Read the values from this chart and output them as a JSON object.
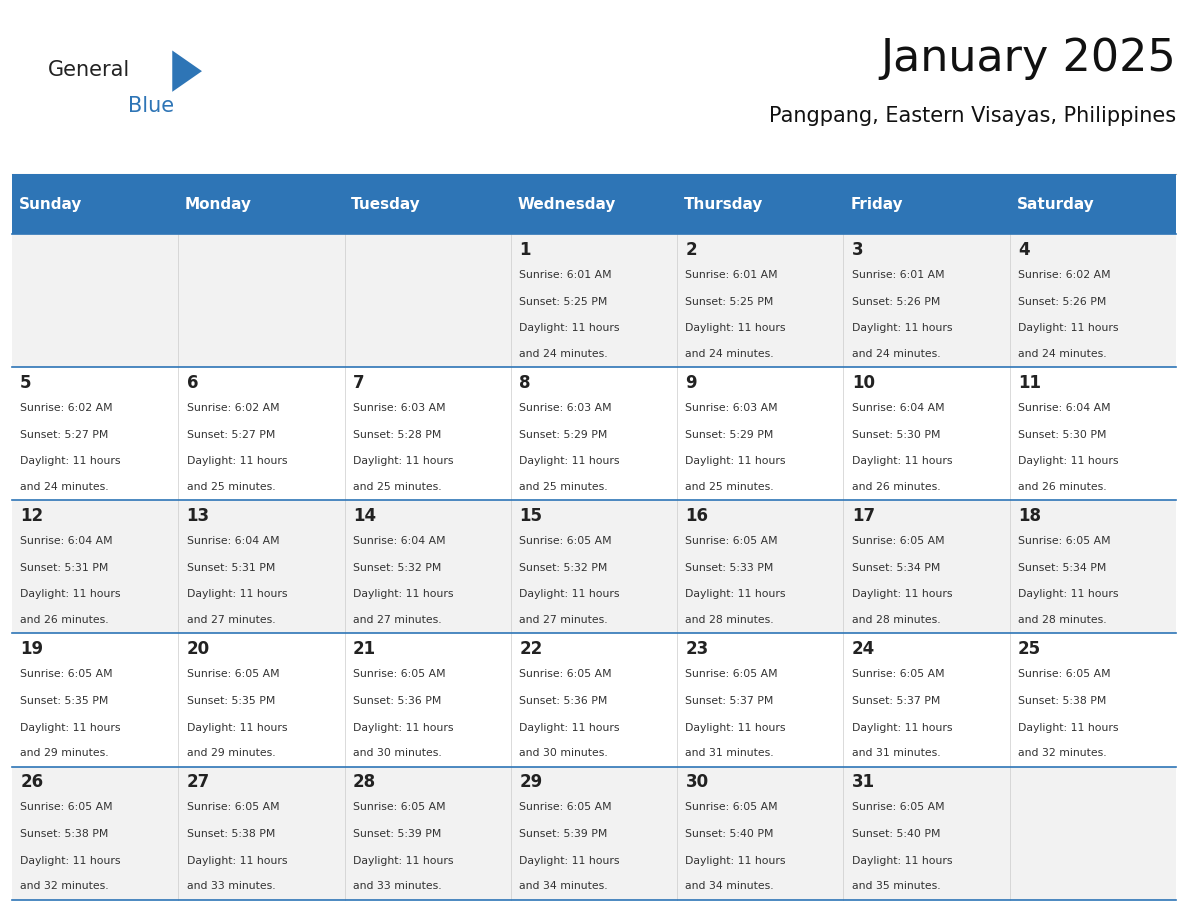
{
  "title": "January 2025",
  "subtitle": "Pangpang, Eastern Visayas, Philippines",
  "header_bg": "#2E75B6",
  "header_text": "#FFFFFF",
  "cell_bg_odd": "#F2F2F2",
  "cell_bg_even": "#FFFFFF",
  "row_line_color": "#2E75B6",
  "text_color": "#333333",
  "days_of_week": [
    "Sunday",
    "Monday",
    "Tuesday",
    "Wednesday",
    "Thursday",
    "Friday",
    "Saturday"
  ],
  "logo_general_color": "#222222",
  "logo_blue_color": "#2E75B6",
  "calendar_data": [
    [
      {
        "day": "",
        "sunrise": "",
        "sunset": "",
        "daylight": ""
      },
      {
        "day": "",
        "sunrise": "",
        "sunset": "",
        "daylight": ""
      },
      {
        "day": "",
        "sunrise": "",
        "sunset": "",
        "daylight": ""
      },
      {
        "day": "1",
        "sunrise": "6:01 AM",
        "sunset": "5:25 PM",
        "daylight": "11 hours and 24 minutes."
      },
      {
        "day": "2",
        "sunrise": "6:01 AM",
        "sunset": "5:25 PM",
        "daylight": "11 hours and 24 minutes."
      },
      {
        "day": "3",
        "sunrise": "6:01 AM",
        "sunset": "5:26 PM",
        "daylight": "11 hours and 24 minutes."
      },
      {
        "day": "4",
        "sunrise": "6:02 AM",
        "sunset": "5:26 PM",
        "daylight": "11 hours and 24 minutes."
      }
    ],
    [
      {
        "day": "5",
        "sunrise": "6:02 AM",
        "sunset": "5:27 PM",
        "daylight": "11 hours and 24 minutes."
      },
      {
        "day": "6",
        "sunrise": "6:02 AM",
        "sunset": "5:27 PM",
        "daylight": "11 hours and 25 minutes."
      },
      {
        "day": "7",
        "sunrise": "6:03 AM",
        "sunset": "5:28 PM",
        "daylight": "11 hours and 25 minutes."
      },
      {
        "day": "8",
        "sunrise": "6:03 AM",
        "sunset": "5:29 PM",
        "daylight": "11 hours and 25 minutes."
      },
      {
        "day": "9",
        "sunrise": "6:03 AM",
        "sunset": "5:29 PM",
        "daylight": "11 hours and 25 minutes."
      },
      {
        "day": "10",
        "sunrise": "6:04 AM",
        "sunset": "5:30 PM",
        "daylight": "11 hours and 26 minutes."
      },
      {
        "day": "11",
        "sunrise": "6:04 AM",
        "sunset": "5:30 PM",
        "daylight": "11 hours and 26 minutes."
      }
    ],
    [
      {
        "day": "12",
        "sunrise": "6:04 AM",
        "sunset": "5:31 PM",
        "daylight": "11 hours and 26 minutes."
      },
      {
        "day": "13",
        "sunrise": "6:04 AM",
        "sunset": "5:31 PM",
        "daylight": "11 hours and 27 minutes."
      },
      {
        "day": "14",
        "sunrise": "6:04 AM",
        "sunset": "5:32 PM",
        "daylight": "11 hours and 27 minutes."
      },
      {
        "day": "15",
        "sunrise": "6:05 AM",
        "sunset": "5:32 PM",
        "daylight": "11 hours and 27 minutes."
      },
      {
        "day": "16",
        "sunrise": "6:05 AM",
        "sunset": "5:33 PM",
        "daylight": "11 hours and 28 minutes."
      },
      {
        "day": "17",
        "sunrise": "6:05 AM",
        "sunset": "5:34 PM",
        "daylight": "11 hours and 28 minutes."
      },
      {
        "day": "18",
        "sunrise": "6:05 AM",
        "sunset": "5:34 PM",
        "daylight": "11 hours and 28 minutes."
      }
    ],
    [
      {
        "day": "19",
        "sunrise": "6:05 AM",
        "sunset": "5:35 PM",
        "daylight": "11 hours and 29 minutes."
      },
      {
        "day": "20",
        "sunrise": "6:05 AM",
        "sunset": "5:35 PM",
        "daylight": "11 hours and 29 minutes."
      },
      {
        "day": "21",
        "sunrise": "6:05 AM",
        "sunset": "5:36 PM",
        "daylight": "11 hours and 30 minutes."
      },
      {
        "day": "22",
        "sunrise": "6:05 AM",
        "sunset": "5:36 PM",
        "daylight": "11 hours and 30 minutes."
      },
      {
        "day": "23",
        "sunrise": "6:05 AM",
        "sunset": "5:37 PM",
        "daylight": "11 hours and 31 minutes."
      },
      {
        "day": "24",
        "sunrise": "6:05 AM",
        "sunset": "5:37 PM",
        "daylight": "11 hours and 31 minutes."
      },
      {
        "day": "25",
        "sunrise": "6:05 AM",
        "sunset": "5:38 PM",
        "daylight": "11 hours and 32 minutes."
      }
    ],
    [
      {
        "day": "26",
        "sunrise": "6:05 AM",
        "sunset": "5:38 PM",
        "daylight": "11 hours and 32 minutes."
      },
      {
        "day": "27",
        "sunrise": "6:05 AM",
        "sunset": "5:38 PM",
        "daylight": "11 hours and 33 minutes."
      },
      {
        "day": "28",
        "sunrise": "6:05 AM",
        "sunset": "5:39 PM",
        "daylight": "11 hours and 33 minutes."
      },
      {
        "day": "29",
        "sunrise": "6:05 AM",
        "sunset": "5:39 PM",
        "daylight": "11 hours and 34 minutes."
      },
      {
        "day": "30",
        "sunrise": "6:05 AM",
        "sunset": "5:40 PM",
        "daylight": "11 hours and 34 minutes."
      },
      {
        "day": "31",
        "sunrise": "6:05 AM",
        "sunset": "5:40 PM",
        "daylight": "11 hours and 35 minutes."
      },
      {
        "day": "",
        "sunrise": "",
        "sunset": "",
        "daylight": ""
      }
    ]
  ]
}
